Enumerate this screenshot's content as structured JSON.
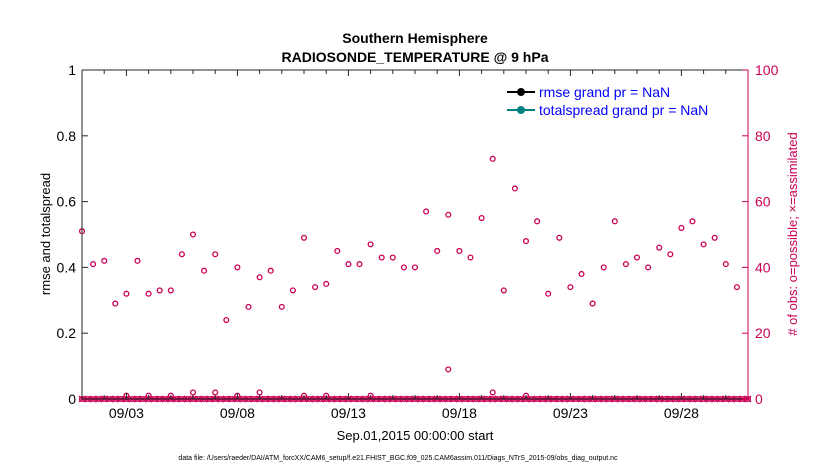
{
  "chart_data": {
    "type": "scatter",
    "title": "Southern Hemisphere",
    "subtitle": "RADIOSONDE_TEMPERATURE @ 9 hPa",
    "xlabel": "Sep.01,2015 00:00:00 start",
    "ylabel_left": "rmse and totalspread",
    "ylabel_right": "# of obs: o=possible; ×=assimilated",
    "footnote": "data file: /Users/raeder/DAI/ATM_forcXX/CAM6_setup/f.e21.FHIST_BGC.f09_025.CAM6assim.011/Diags_NTrS_2015-09/obs_diag_output.nc",
    "xlim": [
      1.0,
      31.0
    ],
    "ylim_left": [
      0,
      1
    ],
    "ylim_right": [
      0,
      100
    ],
    "x_ticks": [
      3,
      8,
      13,
      18,
      23,
      28
    ],
    "x_tick_labels": [
      "09/03",
      "09/08",
      "09/13",
      "09/18",
      "09/23",
      "09/28"
    ],
    "y_left_ticks": [
      0,
      0.2,
      0.4,
      0.6,
      0.8,
      1
    ],
    "y_left_tick_labels": [
      "0",
      "0.2",
      "0.4",
      "0.6",
      "0.8",
      "1"
    ],
    "y_right_ticks": [
      0,
      20,
      40,
      60,
      80,
      100
    ],
    "y_right_tick_labels": [
      "0",
      "20",
      "40",
      "60",
      "80",
      "100"
    ],
    "legend": [
      {
        "label": "rmse grand pr = NaN",
        "color": "#000000"
      },
      {
        "label": "totalspread grand pr = NaN",
        "color": "#008080"
      }
    ],
    "legend_placement": "top-right",
    "colors": {
      "obs": "#cc0055",
      "rmse": "#000000",
      "totalspread": "#008080",
      "legend_text": "#0000ff"
    },
    "series": [
      {
        "name": "obs possible",
        "marker": "circle",
        "x": [
          1.0,
          1.5,
          2.0,
          2.5,
          3.0,
          3.5,
          4.0,
          4.5,
          5.0,
          5.5,
          6.0,
          6.5,
          7.0,
          7.5,
          8.0,
          8.5,
          9.0,
          9.5,
          10.0,
          10.5,
          11.0,
          11.5,
          12.0,
          12.5,
          13.0,
          13.5,
          14.0,
          14.5,
          15.0,
          15.5,
          16.0,
          16.5,
          17.0,
          17.5,
          18.0,
          18.5,
          19.0,
          19.5,
          20.0,
          20.5,
          21.0,
          21.5,
          22.0,
          22.5,
          23.0,
          23.5,
          24.0,
          24.5,
          25.0,
          25.5,
          26.0,
          26.5,
          27.0,
          27.5,
          28.0,
          28.5,
          29.0,
          29.5,
          30.0,
          30.5
        ],
        "y": [
          51,
          41,
          42,
          29,
          32,
          42,
          32,
          33,
          33,
          44,
          50,
          39,
          44,
          24,
          40,
          28,
          37,
          39,
          28,
          33,
          49,
          34,
          35,
          45,
          41,
          41,
          47,
          43,
          43,
          40,
          40,
          57,
          45,
          56,
          45,
          43,
          55,
          73,
          33,
          64,
          48,
          54,
          32,
          49,
          34,
          38,
          29,
          40,
          54,
          41,
          43,
          40,
          46,
          44,
          52,
          54,
          47,
          49,
          41,
          34
        ]
      },
      {
        "name": "obs possible (near zero)",
        "marker": "circle",
        "x": [
          3.0,
          4.0,
          5.0,
          6.0,
          7.0,
          8.0,
          9.0,
          11.0,
          12.0,
          14.0,
          17.5,
          19.5,
          21.0
        ],
        "y": [
          1,
          1,
          1,
          2,
          2,
          1,
          2,
          1,
          1,
          1,
          9,
          2,
          1
        ]
      },
      {
        "name": "obs assimilated",
        "marker": "x",
        "x_range": [
          1.0,
          31.0
        ],
        "x_step": 0.25,
        "value": 0
      },
      {
        "name": "obs possible (zero row)",
        "marker": "circle",
        "x_range": [
          1.0,
          31.0
        ],
        "x_step": 0.25,
        "value": 0
      }
    ]
  }
}
